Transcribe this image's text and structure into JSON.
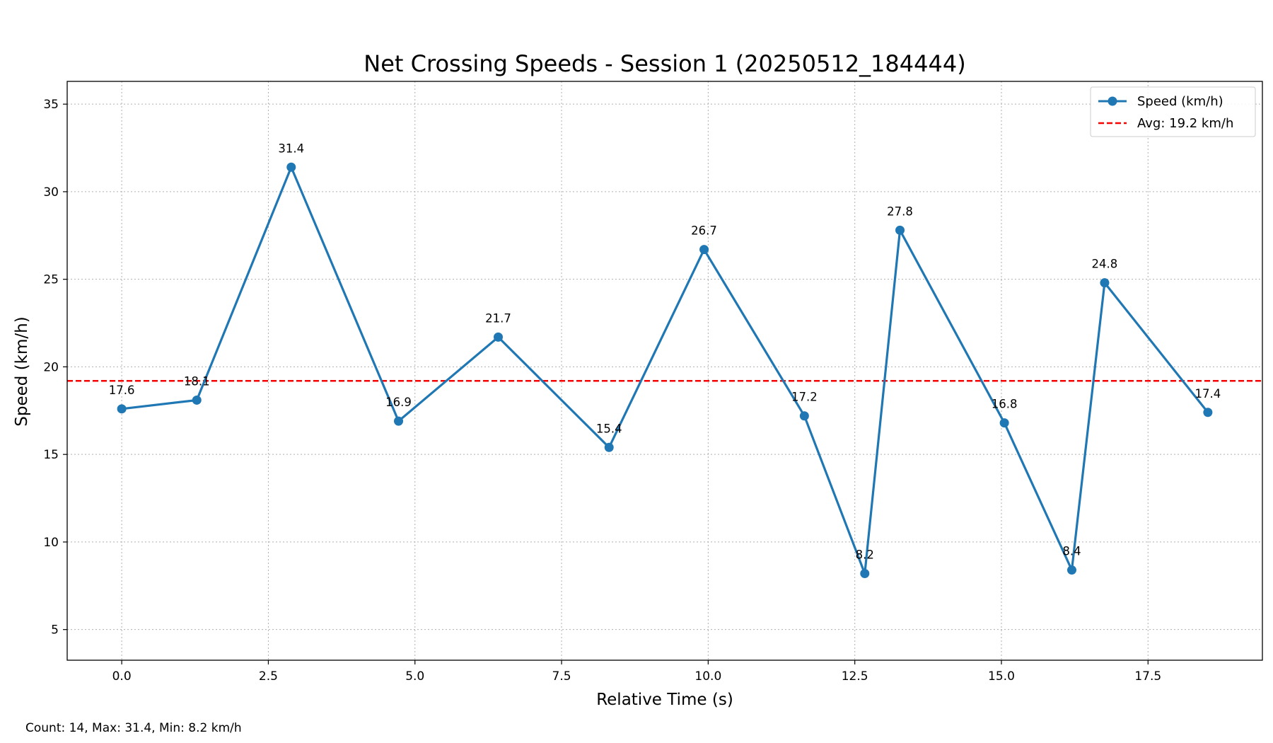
{
  "chart_data": {
    "type": "line",
    "title": "Net Crossing Speeds - Session 1 (20250512_184444)",
    "xlabel": "Relative Time (s)",
    "ylabel": "Speed (km/h)",
    "xlim": [
      -0.93,
      19.45
    ],
    "ylim": [
      3.25,
      36.3
    ],
    "xticks": [
      0.0,
      2.5,
      5.0,
      7.5,
      10.0,
      12.5,
      15.0,
      17.5
    ],
    "xtick_labels": [
      "0.0",
      "2.5",
      "5.0",
      "7.5",
      "10.0",
      "12.5",
      "15.0",
      "17.5"
    ],
    "yticks": [
      5,
      10,
      15,
      20,
      25,
      30,
      35
    ],
    "ytick_labels": [
      "5",
      "10",
      "15",
      "20",
      "25",
      "30",
      "35"
    ],
    "grid": true,
    "legend_position": "top-right",
    "series": [
      {
        "name": "Speed (km/h)",
        "color": "#1f77b4",
        "marker": "circle",
        "x": [
          0.0,
          1.28,
          2.89,
          4.72,
          6.42,
          8.31,
          9.93,
          11.64,
          12.67,
          13.27,
          15.05,
          16.2,
          16.76,
          18.52
        ],
        "y": [
          17.6,
          18.1,
          31.4,
          16.9,
          21.7,
          15.4,
          26.7,
          17.2,
          8.2,
          27.8,
          16.8,
          8.4,
          24.8,
          17.4
        ],
        "labels": [
          "17.6",
          "18.1",
          "31.4",
          "16.9",
          "21.7",
          "15.4",
          "26.7",
          "17.2",
          "8.2",
          "27.8",
          "16.8",
          "8.4",
          "24.8",
          "17.4"
        ]
      }
    ],
    "reference_lines": [
      {
        "name": "Avg: 19.2 km/h",
        "y": 19.2,
        "color": "#ff0000",
        "style": "dashed"
      }
    ],
    "footer_text": "Count: 14, Max: 31.4, Min: 8.2 km/h"
  }
}
